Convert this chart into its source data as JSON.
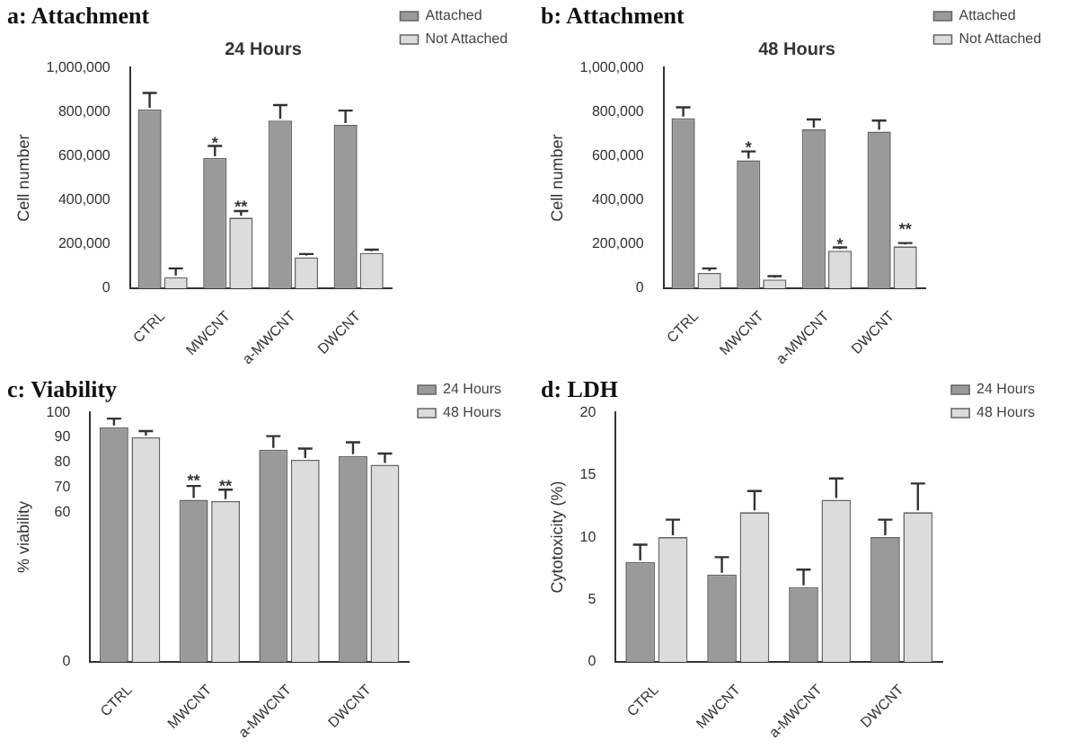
{
  "chart_data": [
    {
      "type": "bar",
      "title": "a: Attachment",
      "subtitle": "24 Hours",
      "ylabel": "Cell number",
      "categories": [
        "CTRL",
        "MWCNT",
        "a-MWCNT",
        "DWCNT"
      ],
      "series": [
        {
          "name": "Attached",
          "color": "#9a9a9a",
          "values": [
            810000,
            590000,
            760000,
            740000
          ],
          "errors": [
            75000,
            55000,
            70000,
            65000
          ]
        },
        {
          "name": "Not Attached",
          "color": "#dcdcdc",
          "values": [
            50000,
            320000,
            140000,
            160000
          ],
          "errors": [
            40000,
            30000,
            15000,
            15000
          ]
        }
      ],
      "ylim": [
        0,
        1000000
      ],
      "yticks": [
        0,
        {
          "value": 200000,
          "label": "200,000"
        },
        {
          "value": 400000,
          "label": "400,000"
        },
        {
          "value": 600000,
          "label": "600,000"
        },
        {
          "value": 800000,
          "label": "800,000"
        },
        {
          "value": 1000000,
          "label": "1,000,000"
        }
      ],
      "annotations": [
        {
          "text": "*",
          "x": "MWCNT",
          "y": 650000
        },
        {
          "text": "**",
          "x": "MWCNT",
          "y": 360000
        }
      ],
      "legend": "top right",
      "grid": false
    },
    {
      "type": "bar",
      "title": "b: Attachment",
      "subtitle": "48 Hours",
      "ylabel": "Cell number",
      "categories": [
        "CTRL",
        "MWCNT",
        "a-MWCNT",
        "DWCNT"
      ],
      "series": [
        {
          "name": "Attached",
          "color": "#9a9a9a",
          "values": [
            770000,
            580000,
            720000,
            710000
          ],
          "errors": [
            50000,
            40000,
            45000,
            50000
          ]
        },
        {
          "name": "Not Attached",
          "color": "#dcdcdc",
          "values": [
            70000,
            40000,
            170000,
            190000
          ],
          "errors": [
            20000,
            15000,
            15000,
            15000
          ]
        }
      ],
      "ylim": [
        0,
        1000000
      ],
      "yticks": [
        0,
        {
          "value": 200000,
          "label": "200,000"
        },
        {
          "value": 400000,
          "label": "400,000"
        },
        {
          "value": 600000,
          "label": "600,000"
        },
        {
          "value": 800000,
          "label": "800,000"
        },
        {
          "value": 1000000,
          "label": "1,000,000"
        }
      ],
      "annotations": [
        {
          "text": "*",
          "x": "MWCNT",
          "y": 630000
        },
        {
          "text": "*",
          "x": "a-MWCNT",
          "y": 190000
        },
        {
          "text": "**",
          "x": "DWCNT",
          "y": 260000
        }
      ],
      "legend": "top right",
      "grid": false
    },
    {
      "type": "bar",
      "title": "c: Viability",
      "ylabel": "% viability",
      "categories": [
        "CTRL",
        "MWCNT",
        "a-MWCNT",
        "DWCNT"
      ],
      "series": [
        {
          "name": "24 Hours",
          "color": "#9a9a9a",
          "values": [
            94,
            65,
            85,
            82.5
          ],
          "errors": [
            3.5,
            5.5,
            5.5,
            5.5
          ]
        },
        {
          "name": "48 Hours",
          "color": "#dcdcdc",
          "values": [
            90,
            64.5,
            81,
            79
          ],
          "errors": [
            2.5,
            4.5,
            4.5,
            4.5
          ]
        }
      ],
      "ylim": [
        0,
        100
      ],
      "yticks": [
        0,
        60,
        70,
        80,
        90,
        100
      ],
      "annotations": [
        {
          "text": "**",
          "x": "MWCNT",
          "y": 72
        },
        {
          "text": "**",
          "x": "MWCNT",
          "y": 70
        }
      ],
      "legend": "top right",
      "grid": false
    },
    {
      "type": "bar",
      "title": "d: LDH",
      "ylabel": "Cytotoxicity (%)",
      "categories": [
        "CTRL",
        "MWCNT",
        "a-MWCNT",
        "DWCNT"
      ],
      "series": [
        {
          "name": "24 Hours",
          "color": "#9a9a9a",
          "values": [
            8,
            7,
            6,
            10
          ],
          "errors": [
            1.4,
            1.4,
            1.4,
            1.4
          ]
        },
        {
          "name": "48 Hours",
          "color": "#dcdcdc",
          "values": [
            10,
            12,
            13,
            12
          ],
          "errors": [
            1.4,
            1.7,
            1.7,
            2.3
          ]
        }
      ],
      "ylim": [
        0,
        20
      ],
      "yticks": [
        0,
        5,
        10,
        15,
        20
      ],
      "legend": "top right",
      "grid": false
    }
  ]
}
